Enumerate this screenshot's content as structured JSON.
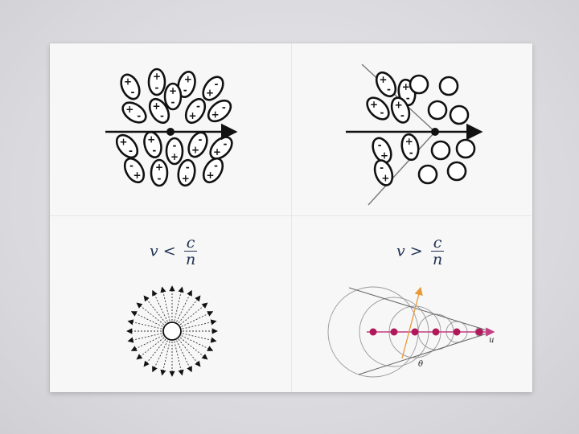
{
  "polarization": {
    "plus": "+",
    "minus": "-"
  },
  "left_formula": {
    "var": "v",
    "op": "<",
    "numerator": "c",
    "denominator": "n"
  },
  "right_formula": {
    "var": "v",
    "op": ">",
    "numerator": "c",
    "denominator": "n"
  },
  "cone": {
    "velocity_label": "u",
    "angle_label": "θ",
    "circle_color": "#999999",
    "dot_color": "#b0185a",
    "axis_color": "#c43c82",
    "wavefront_color": "#e79a3a"
  }
}
